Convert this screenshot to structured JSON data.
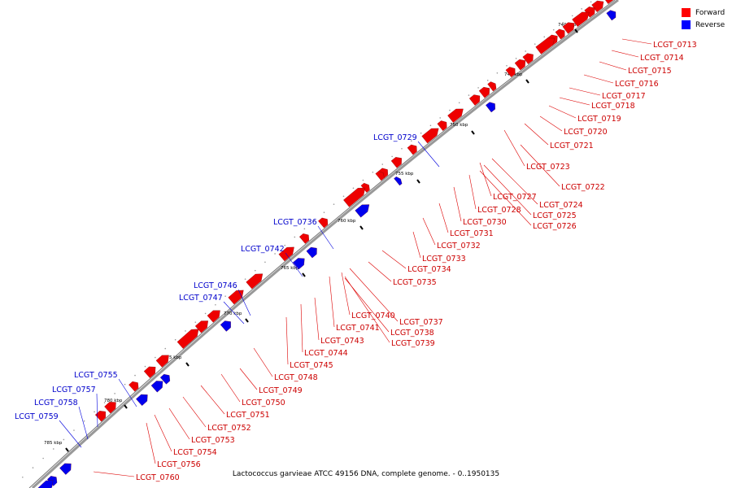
{
  "caption": "Lactococcus garvieae ATCC 49156 DNA, complete genome. - 0..1950135",
  "legend": [
    {
      "label": "Forward",
      "color": "#ff0000"
    },
    {
      "label": "Reverse",
      "color": "#0000ff"
    }
  ],
  "scale_ticks": [
    "740 kbp",
    "745 kbp",
    "750 kbp",
    "755 kbp",
    "760 kbp",
    "765 kbp",
    "770 kbp",
    "775 kbp",
    "780 kbp",
    "785 kbp"
  ],
  "forward_genes": [
    "LCGT_0713",
    "LCGT_0714",
    "LCGT_0715",
    "LCGT_0716",
    "LCGT_0717",
    "LCGT_0718",
    "LCGT_0719",
    "LCGT_0720",
    "LCGT_0721",
    "LCGT_0723",
    "LCGT_0722",
    "LCGT_0727",
    "LCGT_0724",
    "LCGT_0728",
    "LCGT_0725",
    "LCGT_0730",
    "LCGT_0726",
    "LCGT_0731",
    "LCGT_0732",
    "LCGT_0733",
    "LCGT_0734",
    "LCGT_0735",
    "LCGT_0740",
    "LCGT_0737",
    "LCGT_0741",
    "LCGT_0738",
    "LCGT_0743",
    "LCGT_0739",
    "LCGT_0744",
    "LCGT_0745",
    "LCGT_0748",
    "LCGT_0749",
    "LCGT_0750",
    "LCGT_0751",
    "LCGT_0752",
    "LCGT_0753",
    "LCGT_0754",
    "LCGT_0756",
    "LCGT_0760"
  ],
  "reverse_genes": [
    "LCGT_0729",
    "LCGT_0736",
    "LCGT_0742",
    "LCGT_0746",
    "LCGT_0747",
    "LCGT_0755",
    "LCGT_0757",
    "LCGT_0758",
    "LCGT_0759"
  ],
  "colors": {
    "forward": "#ff0000",
    "reverse": "#0000ff",
    "backbone": "#999999",
    "forward_label": "#cc0000",
    "reverse_label": "#0000cc"
  }
}
